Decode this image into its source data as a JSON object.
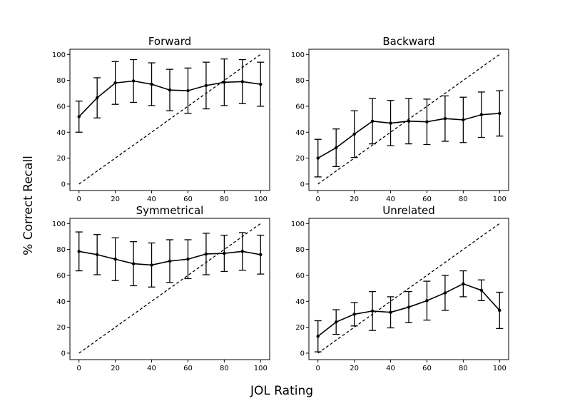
{
  "figure": {
    "xlabel": "JOL Rating",
    "ylabel": "% Correct Recall"
  },
  "chart_data": [
    {
      "type": "line",
      "title": "Forward",
      "x": [
        0,
        10,
        20,
        30,
        40,
        50,
        60,
        70,
        80,
        90,
        100
      ],
      "series": [
        {
          "values": [
            52,
            66.5,
            78,
            79.5,
            77,
            72.5,
            72,
            76,
            78.5,
            79,
            77
          ],
          "error": [
            12,
            15.5,
            16.5,
            16.5,
            16.5,
            16,
            17.5,
            18,
            18,
            17,
            17
          ],
          "color": "#000000",
          "marker": "dot",
          "error_bars": true
        }
      ],
      "reference_line": {
        "style": "dashed",
        "from": [
          0,
          0
        ],
        "to": [
          100,
          100
        ]
      },
      "xticks": [
        "0",
        "20",
        "40",
        "60",
        "80",
        "100"
      ],
      "yticks": [
        "0",
        "20",
        "40",
        "60",
        "80",
        "100"
      ],
      "xlim": [
        -5,
        105
      ],
      "ylim": [
        -5,
        104
      ],
      "grid": false
    },
    {
      "type": "line",
      "title": "Backward",
      "x": [
        0,
        10,
        20,
        30,
        40,
        50,
        60,
        70,
        80,
        90,
        100
      ],
      "series": [
        {
          "values": [
            20,
            28,
            38.5,
            48.5,
            47,
            48.5,
            48,
            50.5,
            49.5,
            53.5,
            54.5
          ],
          "error": [
            14.5,
            14.5,
            18,
            17.5,
            17.5,
            17.5,
            17.5,
            17.5,
            17.5,
            17.5,
            17.5
          ],
          "color": "#000000",
          "marker": "dot",
          "error_bars": true
        }
      ],
      "reference_line": {
        "style": "dashed",
        "from": [
          0,
          0
        ],
        "to": [
          100,
          100
        ]
      },
      "xticks": [
        "0",
        "20",
        "40",
        "60",
        "80",
        "100"
      ],
      "yticks": [
        "0",
        "20",
        "40",
        "60",
        "80",
        "100"
      ],
      "xlim": [
        -5,
        105
      ],
      "ylim": [
        -5,
        104
      ],
      "grid": false
    },
    {
      "type": "line",
      "title": "Symmetrical",
      "x": [
        0,
        10,
        20,
        30,
        40,
        50,
        60,
        70,
        80,
        90,
        100
      ],
      "series": [
        {
          "values": [
            78.5,
            76,
            72.5,
            69,
            68,
            71,
            72.5,
            76.5,
            77,
            78.5,
            76
          ],
          "error": [
            15,
            15.5,
            16.5,
            17,
            17,
            16.5,
            15,
            16,
            14,
            14.5,
            15
          ],
          "color": "#000000",
          "marker": "dot",
          "error_bars": true
        }
      ],
      "reference_line": {
        "style": "dashed",
        "from": [
          0,
          0
        ],
        "to": [
          100,
          100
        ]
      },
      "xticks": [
        "0",
        "20",
        "40",
        "60",
        "80",
        "100"
      ],
      "yticks": [
        "0",
        "20",
        "40",
        "60",
        "80",
        "100"
      ],
      "xlim": [
        -5,
        105
      ],
      "ylim": [
        -5,
        104
      ],
      "grid": false
    },
    {
      "type": "line",
      "title": "Unrelated",
      "x": [
        0,
        10,
        20,
        30,
        40,
        50,
        60,
        70,
        80,
        90,
        100
      ],
      "series": [
        {
          "values": [
            13,
            24,
            30,
            32.5,
            31.5,
            35.5,
            40.5,
            46.5,
            53.5,
            48.5,
            33
          ],
          "error": [
            12,
            9.5,
            9,
            15,
            12,
            12,
            15,
            13.5,
            10,
            8,
            14
          ],
          "color": "#000000",
          "marker": "dot",
          "error_bars": true
        }
      ],
      "reference_line": {
        "style": "dashed",
        "from": [
          0,
          0
        ],
        "to": [
          100,
          100
        ]
      },
      "xticks": [
        "0",
        "20",
        "40",
        "60",
        "80",
        "100"
      ],
      "yticks": [
        "0",
        "20",
        "40",
        "60",
        "80",
        "100"
      ],
      "xlim": [
        -5,
        105
      ],
      "ylim": [
        -5,
        104
      ],
      "grid": false
    }
  ]
}
